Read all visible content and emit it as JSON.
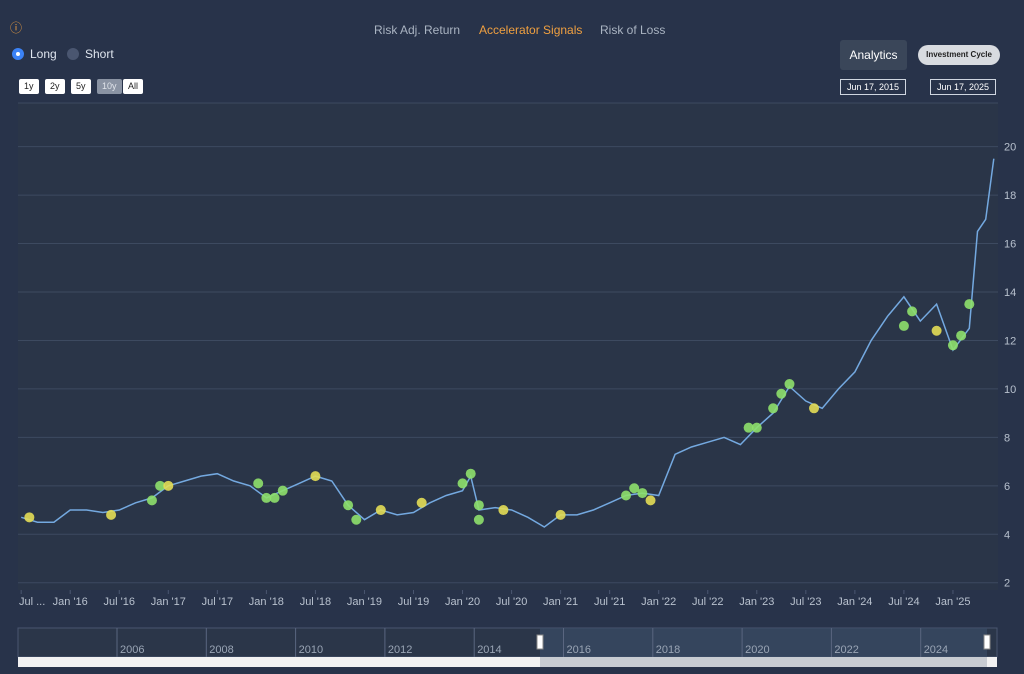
{
  "info_icon": "ⓘ",
  "tabs": [
    "Risk Adj. Return",
    "Accelerator Signals",
    "Risk of Loss"
  ],
  "radio": [
    "Long",
    "Short"
  ],
  "ranges": [
    "1y",
    "2y",
    "5y",
    "10y",
    "All"
  ],
  "analytics": "Analytics",
  "investment_cycle": "Investment Cycle",
  "date_from": "Jun 17, 2015",
  "date_to": "Jun 17, 2025",
  "navigator_years": [
    "2006",
    "2008",
    "2010",
    "2012",
    "2014",
    "2016",
    "2018",
    "2020",
    "2022",
    "2024"
  ],
  "chart_data": {
    "type": "line",
    "xlim": [
      "2015-06",
      "2025-07"
    ],
    "ylim": [
      1.7,
      21.8
    ],
    "yticks": [
      2,
      4,
      6,
      8,
      10,
      12,
      14,
      16,
      18,
      20
    ],
    "grid": true,
    "xticks": [
      {
        "value": "2015-07",
        "label": "Jul ..."
      },
      {
        "value": "2016-01",
        "label": "Jan '16"
      },
      {
        "value": "2016-07",
        "label": "Jul '16"
      },
      {
        "value": "2017-01",
        "label": "Jan '17"
      },
      {
        "value": "2017-07",
        "label": "Jul '17"
      },
      {
        "value": "2018-01",
        "label": "Jan '18"
      },
      {
        "value": "2018-07",
        "label": "Jul '18"
      },
      {
        "value": "2019-01",
        "label": "Jan '19"
      },
      {
        "value": "2019-07",
        "label": "Jul '19"
      },
      {
        "value": "2020-01",
        "label": "Jan '20"
      },
      {
        "value": "2020-07",
        "label": "Jul '20"
      },
      {
        "value": "2021-01",
        "label": "Jan '21"
      },
      {
        "value": "2021-07",
        "label": "Jul '21"
      },
      {
        "value": "2022-01",
        "label": "Jan '22"
      },
      {
        "value": "2022-07",
        "label": "Jul '22"
      },
      {
        "value": "2023-01",
        "label": "Jan '23"
      },
      {
        "value": "2023-07",
        "label": "Jul '23"
      },
      {
        "value": "2024-01",
        "label": "Jan '24"
      },
      {
        "value": "2024-07",
        "label": "Jul '24"
      },
      {
        "value": "2025-01",
        "label": "Jan '25"
      }
    ],
    "series": [
      {
        "style": "line",
        "color": "#74a9e0",
        "x": [
          "2015-07",
          "2015-09",
          "2015-11",
          "2016-01",
          "2016-03",
          "2016-05",
          "2016-07",
          "2016-09",
          "2016-11",
          "2017-01",
          "2017-03",
          "2017-05",
          "2017-07",
          "2017-09",
          "2017-11",
          "2018-01",
          "2018-03",
          "2018-05",
          "2018-07",
          "2018-09",
          "2018-11",
          "2019-01",
          "2019-03",
          "2019-05",
          "2019-07",
          "2019-09",
          "2019-11",
          "2020-01",
          "2020-02",
          "2020-03",
          "2020-05",
          "2020-07",
          "2020-09",
          "2020-11",
          "2021-01",
          "2021-03",
          "2021-05",
          "2021-07",
          "2021-09",
          "2021-11",
          "2022-01",
          "2022-03",
          "2022-05",
          "2022-07",
          "2022-09",
          "2022-11",
          "2023-01",
          "2023-03",
          "2023-05",
          "2023-07",
          "2023-09",
          "2023-11",
          "2024-01",
          "2024-03",
          "2024-05",
          "2024-07",
          "2024-09",
          "2024-11",
          "2025-01",
          "2025-03",
          "2025-04",
          "2025-05",
          "2025-06"
        ],
        "values": [
          4.7,
          4.5,
          4.5,
          5.0,
          5.0,
          4.9,
          5.0,
          5.3,
          5.5,
          6.0,
          6.2,
          6.4,
          6.5,
          6.2,
          6.0,
          5.5,
          5.8,
          6.1,
          6.4,
          6.2,
          5.2,
          4.6,
          5.0,
          4.8,
          4.9,
          5.3,
          5.6,
          5.8,
          6.4,
          5.0,
          5.1,
          5.0,
          4.7,
          4.3,
          4.8,
          4.8,
          5.0,
          5.3,
          5.6,
          5.7,
          5.6,
          7.3,
          7.6,
          7.8,
          8.0,
          7.7,
          8.4,
          9.0,
          10.1,
          9.5,
          9.2,
          10.0,
          10.7,
          12.0,
          13.0,
          13.8,
          12.8,
          13.5,
          11.6,
          12.5,
          16.5,
          17.0,
          19.5
        ]
      },
      {
        "style": "dots",
        "color": "#8ee06b",
        "x": [
          "2016-11",
          "2016-12",
          "2017-12",
          "2018-01",
          "2018-02",
          "2018-03",
          "2018-11",
          "2018-12",
          "2020-01",
          "2020-02",
          "2020-03",
          "2020-03",
          "2021-09",
          "2021-10",
          "2021-11",
          "2022-12",
          "2023-01",
          "2023-03",
          "2023-04",
          "2023-05",
          "2024-07",
          "2024-08",
          "2025-01",
          "2025-02",
          "2025-03"
        ],
        "values": [
          5.4,
          6.0,
          6.1,
          5.5,
          5.5,
          5.8,
          5.2,
          4.6,
          6.1,
          6.5,
          5.2,
          4.6,
          5.6,
          5.9,
          5.7,
          8.4,
          8.4,
          9.2,
          9.8,
          10.2,
          12.6,
          13.2,
          11.8,
          12.2,
          13.5
        ]
      },
      {
        "style": "dots",
        "color": "#e3dd55",
        "x": [
          "2015-08",
          "2016-06",
          "2017-01",
          "2018-07",
          "2019-03",
          "2019-08",
          "2020-06",
          "2021-01",
          "2021-12",
          "2023-08",
          "2024-11"
        ],
        "values": [
          4.7,
          4.8,
          6.0,
          6.4,
          5.0,
          5.3,
          5.0,
          4.8,
          5.4,
          9.2,
          12.4
        ]
      }
    ]
  }
}
